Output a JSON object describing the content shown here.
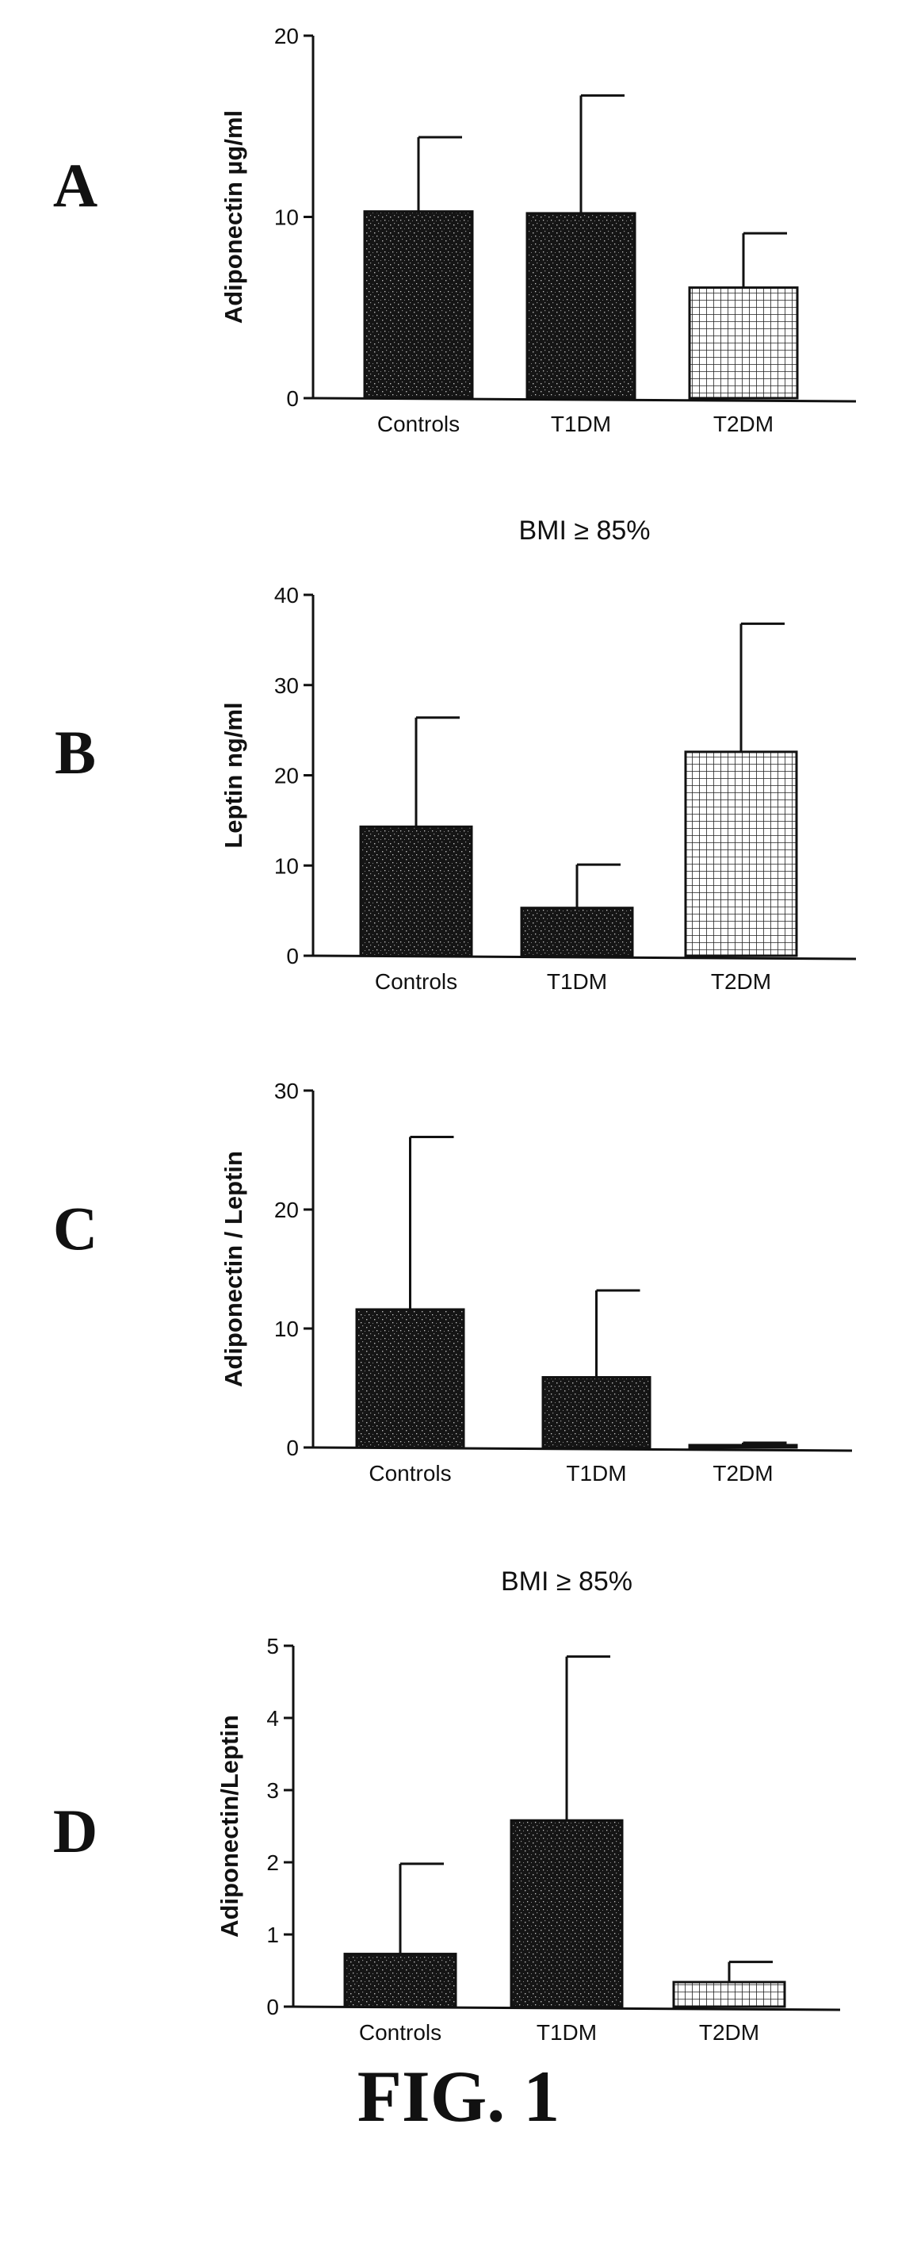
{
  "figure_caption": "FIG. 1",
  "colors": {
    "ink": "#111111",
    "paper": "#ffffff"
  },
  "chart_data": [
    {
      "panel": "A",
      "type": "bar",
      "title": "",
      "ylabel": "Adiponectin  µg/ml",
      "xlabel": "",
      "categories": [
        "Controls",
        "T1DM",
        "T2DM"
      ],
      "values": [
        10.3,
        10.2,
        6.1
      ],
      "error_plus": [
        4.1,
        6.5,
        3.0
      ],
      "ylim": [
        0,
        20
      ],
      "yticks": [
        0,
        10,
        20
      ],
      "fills": [
        "dark-stipple",
        "dark-stipple",
        "grid"
      ]
    },
    {
      "panel": "B",
      "type": "bar",
      "title": "BMI ≥ 85%",
      "ylabel": "Leptin ng/ml",
      "xlabel": "",
      "categories": [
        "Controls",
        "T1DM",
        "T2DM"
      ],
      "values": [
        14.3,
        5.3,
        22.6
      ],
      "error_plus": [
        12.1,
        4.8,
        14.2
      ],
      "ylim": [
        0,
        40
      ],
      "yticks": [
        0,
        10,
        20,
        30,
        40
      ],
      "fills": [
        "dark-stipple",
        "dark-stipple",
        "grid"
      ]
    },
    {
      "panel": "C",
      "type": "bar",
      "title": "",
      "ylabel": "Adiponectin / Leptin",
      "xlabel": "",
      "categories": [
        "Controls",
        "T1DM",
        "T2DM"
      ],
      "values": [
        11.6,
        5.9,
        0.2
      ],
      "error_plus": [
        14.5,
        7.3,
        0.2
      ],
      "ylim": [
        0,
        30
      ],
      "yticks": [
        0,
        10,
        20,
        30
      ],
      "fills": [
        "dark-stipple",
        "dark-stipple",
        "grid"
      ]
    },
    {
      "panel": "D",
      "type": "bar",
      "title": "BMI ≥ 85%",
      "ylabel": "Adiponectin/Leptin",
      "xlabel": "",
      "categories": [
        "Controls",
        "T1DM",
        "T2DM"
      ],
      "values": [
        0.73,
        2.58,
        0.34
      ],
      "error_plus": [
        1.25,
        2.27,
        0.28
      ],
      "ylim": [
        0,
        5
      ],
      "yticks": [
        0,
        1,
        2,
        3,
        4,
        5
      ],
      "fills": [
        "dark-stipple",
        "dark-stipple",
        "grid"
      ]
    }
  ]
}
